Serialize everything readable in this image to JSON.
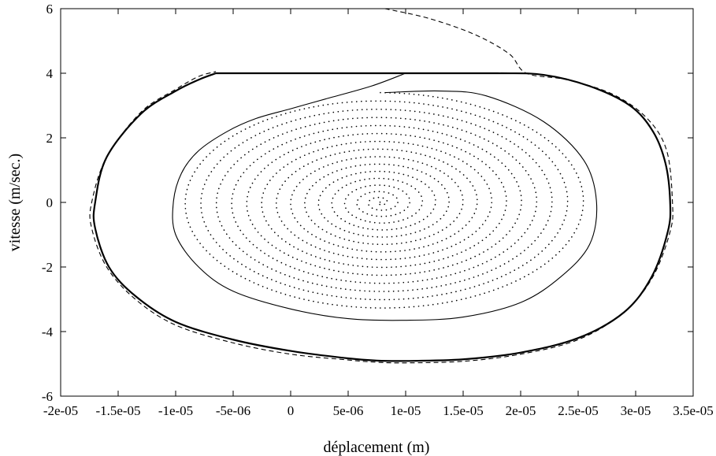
{
  "chart_data": {
    "type": "line",
    "title": "",
    "xlabel": "déplacement (m)",
    "ylabel": "vitesse (m/sec.)",
    "xlim": [
      -2e-05,
      3.5e-05
    ],
    "ylim": [
      -6,
      6
    ],
    "x_ticks": [
      -2e-05,
      -1.5e-05,
      -1e-05,
      -5e-06,
      0,
      5e-06,
      1e-05,
      1.5e-05,
      2e-05,
      2.5e-05,
      3e-05,
      3.5e-05
    ],
    "x_tick_labels": [
      "-2e-05",
      "-1.5e-05",
      "-1e-05",
      "-5e-06",
      "0",
      "5e-06",
      "1e-05",
      "1.5e-05",
      "2e-05",
      "2.5e-05",
      "3e-05",
      "3.5e-05"
    ],
    "y_ticks": [
      -6,
      -4,
      -2,
      0,
      2,
      4,
      6
    ],
    "y_tick_labels": [
      "-6",
      "-4",
      "-2",
      "0",
      "2",
      "4",
      "6"
    ],
    "grid": false,
    "legend": "none",
    "series": [
      {
        "style": "dashed",
        "x": [
          8.2e-06,
          1.2e-05,
          1.6e-05,
          1.9e-05,
          2.05e-05,
          2.4e-05,
          2.8e-05,
          3.1e-05,
          3.27e-05,
          3.32e-05,
          3.3e-05,
          3.15e-05,
          2.9e-05,
          2.5e-05,
          2e-05,
          1.5e-05,
          1e-05,
          7.5e-06,
          5e-06,
          0,
          -5e-06,
          -1e-05,
          -1.35e-05,
          -1.6e-05,
          -1.73e-05,
          -1.73e-05,
          -1.6e-05,
          -1.3e-05,
          -1e-05,
          -8e-06,
          -6.5e-06
        ],
        "y": [
          6.0,
          5.7,
          5.2,
          4.6,
          4.0,
          3.8,
          3.35,
          2.6,
          1.6,
          0.0,
          -0.9,
          -2.3,
          -3.4,
          -4.25,
          -4.7,
          -4.92,
          -4.97,
          -4.95,
          -4.88,
          -4.7,
          -4.35,
          -3.8,
          -3.0,
          -2.0,
          -0.8,
          0.0,
          1.4,
          2.8,
          3.5,
          3.9,
          4.05
        ]
      },
      {
        "style": "solid-bold",
        "x": [
          -6.5e-06,
          0,
          1e-05,
          1.8e-05,
          2.2e-05,
          2.6e-05,
          2.95e-05,
          3.15e-05,
          3.26e-05,
          3.3e-05,
          3.28e-05,
          3.14e-05,
          2.9e-05,
          2.5e-05,
          2e-05,
          1.5e-05,
          1e-05,
          7.5e-06,
          5e-06,
          0,
          -5e-06,
          -1e-05,
          -1.35e-05,
          -1.58e-05,
          -1.7e-05,
          -1.7e-05,
          -1.6e-05,
          -1.3e-05,
          -1e-05,
          -8e-06,
          -6.5e-06
        ],
        "y": [
          4.0,
          4.0,
          4.0,
          4.0,
          3.95,
          3.6,
          3.0,
          2.2,
          1.2,
          0.0,
          -0.9,
          -2.3,
          -3.4,
          -4.2,
          -4.65,
          -4.86,
          -4.91,
          -4.9,
          -4.83,
          -4.6,
          -4.25,
          -3.7,
          -2.9,
          -2.0,
          -0.8,
          0.0,
          1.4,
          2.75,
          3.45,
          3.8,
          4.0
        ]
      },
      {
        "style": "solid",
        "x": [
          1e-05,
          7e-06,
          3e-06,
          0,
          -3e-06,
          -5.5e-06,
          -8e-06,
          -9.5e-06,
          -1.02e-05,
          -1e-05,
          -8e-06,
          -5e-06,
          0,
          5e-06,
          1e-05,
          1.5e-05,
          2e-05,
          2.35e-05,
          2.6e-05,
          2.66e-05,
          2.55e-05,
          2.2e-05,
          1.7e-05,
          1.3e-05,
          8.2e-06
        ],
        "y": [
          4.0,
          3.6,
          3.2,
          2.9,
          2.6,
          2.2,
          1.6,
          0.9,
          0.0,
          -1.0,
          -2.0,
          -2.75,
          -3.3,
          -3.6,
          -3.65,
          -3.55,
          -3.1,
          -2.3,
          -1.3,
          0.0,
          1.3,
          2.5,
          3.3,
          3.45,
          3.4
        ]
      },
      {
        "style": "dotted",
        "type": "spiral",
        "center": [
          7.8e-06,
          0.0
        ],
        "start": [
          8.2e-06,
          3.4
        ],
        "x_amplitude_start": 1.8e-05,
        "y_amplitude_start": 3.4,
        "turns": 15
      }
    ]
  }
}
